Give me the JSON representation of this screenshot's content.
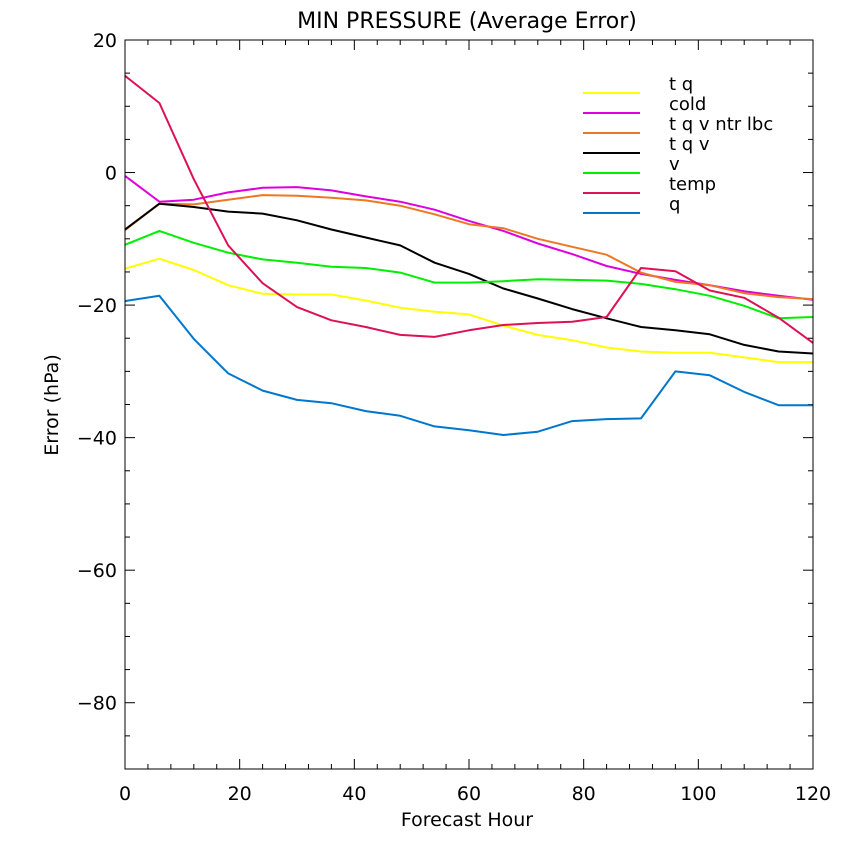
{
  "chart_data": {
    "type": "line",
    "title": "MIN PRESSURE (Average Error)",
    "xlabel": "Forecast Hour",
    "ylabel": "Error (hPa)",
    "xlim": [
      0,
      120
    ],
    "ylim": [
      -90,
      20
    ],
    "xticks": [
      0,
      20,
      40,
      60,
      80,
      100,
      120
    ],
    "yticks": [
      -80,
      -60,
      -40,
      -20,
      0,
      20
    ],
    "xtick_labels": [
      "0",
      "20",
      "40",
      "60",
      "80",
      "100",
      "120"
    ],
    "ytick_labels": [
      "−80",
      "−60",
      "−40",
      "−20",
      "0",
      "20"
    ],
    "grid": false,
    "legend_position": "top-right",
    "x": [
      0,
      6,
      12,
      18,
      24,
      30,
      36,
      42,
      48,
      54,
      60,
      66,
      72,
      78,
      84,
      90,
      96,
      102,
      108,
      114,
      120
    ],
    "series": [
      {
        "name": "t q",
        "color": "#ffff00",
        "values": [
          -14.5,
          -13,
          -14.7,
          -17,
          -18.3,
          -18.4,
          -18.4,
          -19.3,
          -20.4,
          -21,
          -21.4,
          -23.1,
          -24.5,
          -25.3,
          -26.4,
          -27,
          -27.2,
          -27.2,
          -27.9,
          -28.6,
          -28.6
        ]
      },
      {
        "name": "cold",
        "color": "#dd00dd",
        "values": [
          -0.5,
          -4.4,
          -4.1,
          -3,
          -2.3,
          -2.2,
          -2.7,
          -3.6,
          -4.4,
          -5.6,
          -7.3,
          -8.8,
          -10.7,
          -12.3,
          -14.1,
          -15.3,
          -16.2,
          -17,
          -17.9,
          -18.6,
          -19.2
        ]
      },
      {
        "name": "t q v ntr lbc",
        "color": "#ee7722",
        "values": [
          -8.7,
          -4.7,
          -4.8,
          -4.1,
          -3.4,
          -3.5,
          -3.8,
          -4.2,
          -5,
          -6.3,
          -7.8,
          -8.4,
          -10,
          -11.2,
          -12.4,
          -15.1,
          -16.5,
          -17,
          -18.2,
          -18.8,
          -19.1
        ]
      },
      {
        "name": "t q v",
        "color": "#000000",
        "values": [
          -8.6,
          -4.7,
          -5.2,
          -5.9,
          -6.2,
          -7.2,
          -8.6,
          -9.8,
          -11,
          -13.6,
          -15.3,
          -17.5,
          -19,
          -20.6,
          -22,
          -23.3,
          -23.8,
          -24.4,
          -26,
          -27,
          -27.3
        ]
      },
      {
        "name": "v",
        "color": "#00ee00",
        "values": [
          -10.9,
          -8.8,
          -10.6,
          -12.1,
          -13.1,
          -13.6,
          -14.2,
          -14.4,
          -15.1,
          -16.6,
          -16.6,
          -16.4,
          -16.1,
          -16.2,
          -16.3,
          -16.8,
          -17.6,
          -18.6,
          -20.1,
          -22,
          -21.8
        ]
      },
      {
        "name": "temp",
        "color": "#dd1155",
        "values": [
          14.6,
          10.5,
          -1,
          -11,
          -16.7,
          -20.3,
          -22.3,
          -23.3,
          -24.5,
          -24.8,
          -23.8,
          -23,
          -22.7,
          -22.5,
          -21.8,
          -14.4,
          -14.9,
          -17.8,
          -18.9,
          -21.9,
          -25.7
        ]
      },
      {
        "name": "q",
        "color": "#0077cc",
        "values": [
          -19.4,
          -18.6,
          -25.1,
          -30.3,
          -32.9,
          -34.3,
          -34.8,
          -36,
          -36.7,
          -38.3,
          -38.9,
          -39.6,
          -39.1,
          -37.5,
          -37.2,
          -37.1,
          -30,
          -30.6,
          -33.1,
          -35.1,
          -35.1
        ]
      }
    ]
  }
}
